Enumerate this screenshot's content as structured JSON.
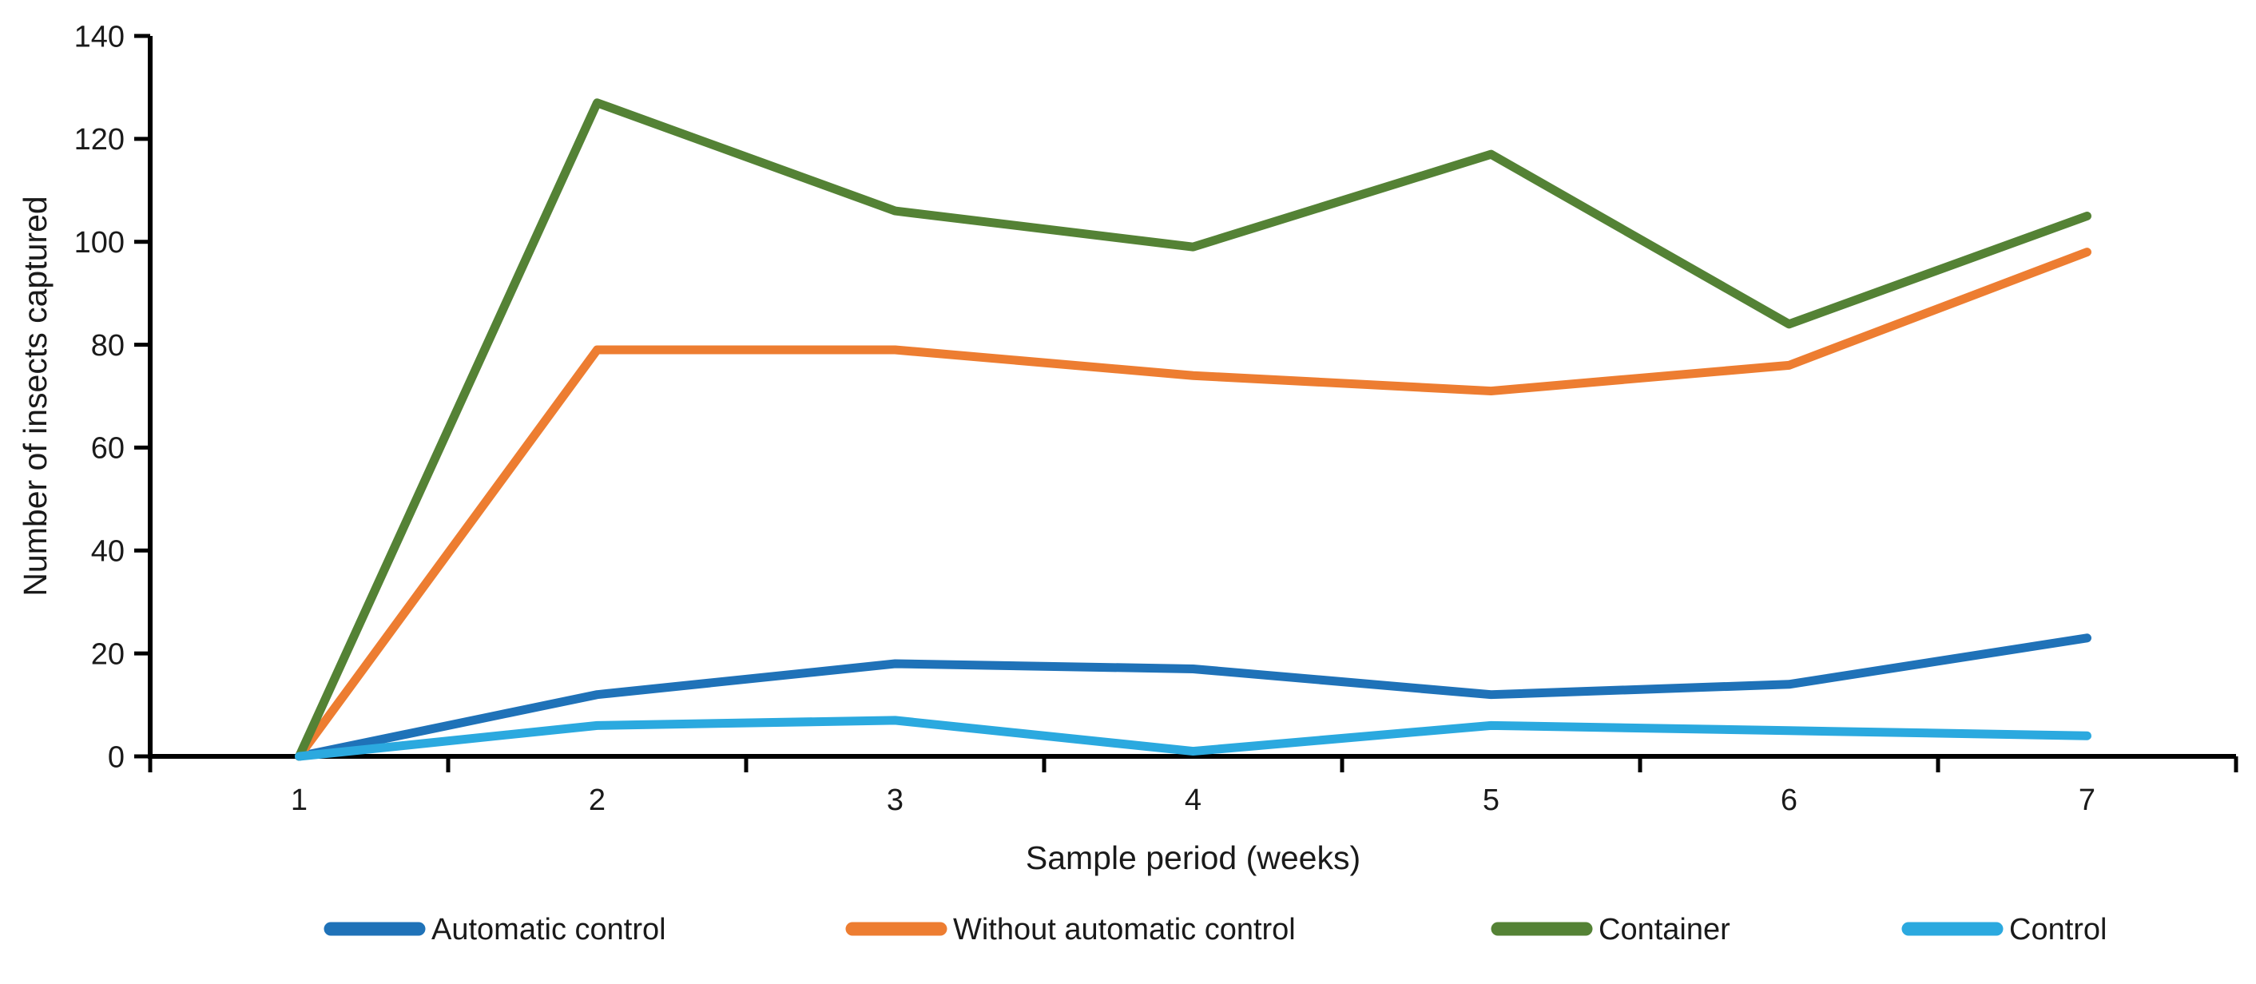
{
  "figure": {
    "background_color": "#ffffff",
    "text_color": "#1a1a1a",
    "axis_color": "#000000"
  },
  "chart_data": {
    "type": "line",
    "title": "",
    "xlabel": "Sample period (weeks)",
    "ylabel": "Number of insects captured",
    "x": [
      1,
      2,
      3,
      4,
      5,
      6,
      7
    ],
    "x_tick_labels": [
      "1",
      "2",
      "3",
      "4",
      "5",
      "6",
      "7"
    ],
    "y_ticks": [
      0,
      20,
      40,
      60,
      80,
      100,
      120,
      140
    ],
    "y_tick_labels": [
      "0",
      "20",
      "40",
      "60",
      "80",
      "100",
      "120",
      "140"
    ],
    "ylim": [
      0,
      140
    ],
    "grid": false,
    "legend_position": "bottom",
    "series": [
      {
        "name": "Automatic control",
        "color": "#1F72B8",
        "values": [
          0,
          12,
          18,
          17,
          12,
          14,
          23
        ]
      },
      {
        "name": "Without automatic control",
        "color": "#ED7D31",
        "values": [
          0,
          79,
          79,
          74,
          71,
          76,
          98
        ]
      },
      {
        "name": "Container",
        "color": "#548235",
        "values": [
          0,
          127,
          106,
          99,
          117,
          84,
          105
        ]
      },
      {
        "name": "Control",
        "color": "#2BA9DF",
        "values": [
          0,
          6,
          7,
          1,
          6,
          5,
          4
        ]
      }
    ]
  }
}
